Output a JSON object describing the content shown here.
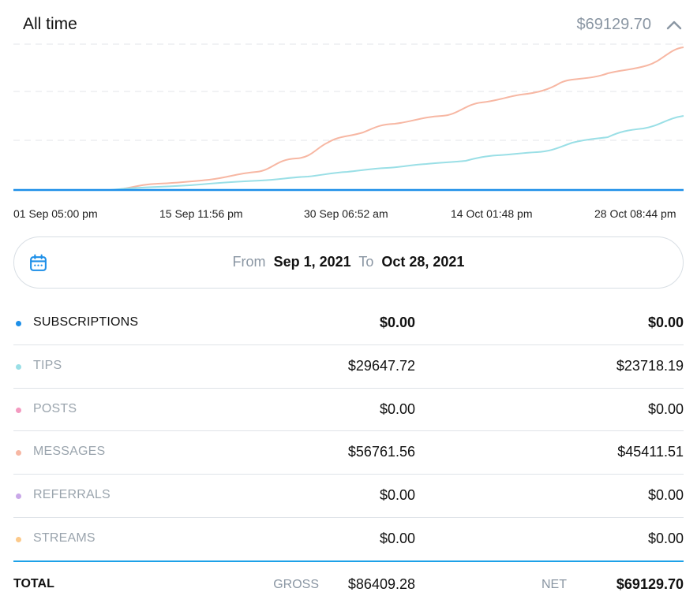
{
  "header": {
    "title": "All time",
    "total": "$69129.70",
    "collapse_icon": "chevron-up-icon"
  },
  "chart": {
    "series_colors": {
      "messages": "#f7b7a3",
      "tips": "#9adfe6",
      "subscriptions": "#1d8fe8"
    },
    "x_labels": [
      "01 Sep 05:00 pm",
      "15 Sep 11:56 pm",
      "30 Sep 06:52 am",
      "14 Oct 01:48 pm",
      "28 Oct 08:44 pm"
    ]
  },
  "date_range": {
    "icon": "calendar-icon",
    "from_label": "From",
    "from_value": "Sep 1, 2021",
    "to_label": "To",
    "to_value": "Oct 28, 2021"
  },
  "rows": [
    {
      "label": "SUBSCRIPTIONS",
      "color": "#1d8fe8",
      "gross": "$0.00",
      "net": "$0.00"
    },
    {
      "label": "TIPS",
      "color": "#9adfe6",
      "gross": "$29647.72",
      "net": "$23718.19"
    },
    {
      "label": "POSTS",
      "color": "#f39ac0",
      "gross": "$0.00",
      "net": "$0.00"
    },
    {
      "label": "MESSAGES",
      "color": "#f7b7a3",
      "gross": "$56761.56",
      "net": "$45411.51"
    },
    {
      "label": "REFERRALS",
      "color": "#c9a8e8",
      "gross": "$0.00",
      "net": "$0.00"
    },
    {
      "label": "STREAMS",
      "color": "#fcc98a",
      "gross": "$0.00",
      "net": "$0.00"
    }
  ],
  "total": {
    "label": "TOTAL",
    "gross_label": "GROSS",
    "gross": "$86409.28",
    "net_label": "NET",
    "net": "$69129.70"
  }
}
